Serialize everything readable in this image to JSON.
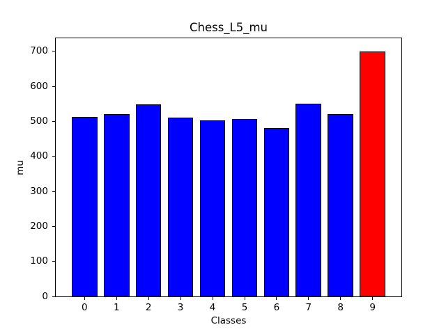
{
  "chart_data": {
    "type": "bar",
    "title": "Chess_L5_mu",
    "xlabel": "Classes",
    "ylabel": "mu",
    "categories": [
      "0",
      "1",
      "2",
      "3",
      "4",
      "5",
      "6",
      "7",
      "8",
      "9"
    ],
    "values": [
      512,
      520,
      548,
      510,
      503,
      506,
      480,
      551,
      521,
      700
    ],
    "bar_colors": [
      "#0000ff",
      "#0000ff",
      "#0000ff",
      "#0000ff",
      "#0000ff",
      "#0000ff",
      "#0000ff",
      "#0000ff",
      "#0000ff",
      "#ff0000"
    ],
    "edge_color": "#000000",
    "background_color": "#ffffff",
    "yticks": [
      0,
      100,
      200,
      300,
      400,
      500,
      600,
      700
    ],
    "ylim": [
      0,
      737
    ],
    "xlim": [
      -0.9,
      9.9
    ],
    "bar_width": 0.8,
    "grid": false,
    "legend": null
  }
}
